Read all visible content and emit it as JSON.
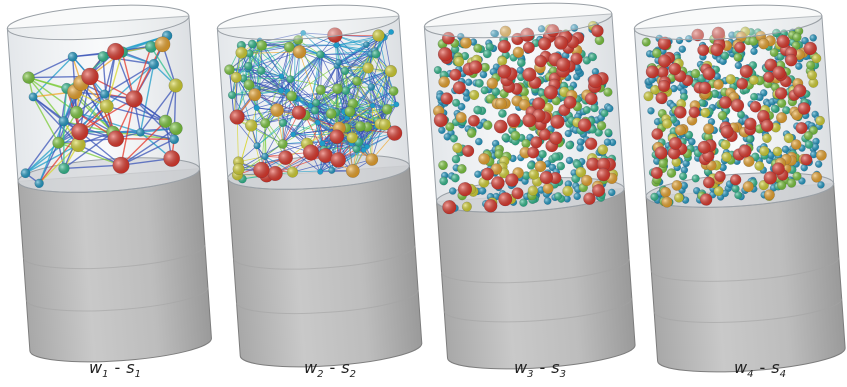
{
  "panels": [
    {
      "id": "p1",
      "var_a": "w",
      "sub_a": "1",
      "sep": "-",
      "var_b": "s",
      "sub_b": "1"
    },
    {
      "id": "p2",
      "var_a": "w",
      "sub_a": "2",
      "sep": "-",
      "var_b": "s",
      "sub_b": "2"
    },
    {
      "id": "p3",
      "var_a": "w",
      "sub_a": "3",
      "sep": "-",
      "var_b": "s",
      "sub_b": "3"
    },
    {
      "id": "p4",
      "var_a": "w",
      "sub_a": "4",
      "sep": "-",
      "var_b": "s",
      "sub_b": "4"
    }
  ],
  "colors": {
    "cylinder_gray": "#b4b4b4",
    "cylinder_dark": "#8e8e8e",
    "glass": "#e9ecef",
    "node_scale": [
      "#2b4fb3",
      "#1f9dc9",
      "#2fbf8f",
      "#7ccc3a",
      "#d8d62e",
      "#f0a628",
      "#e5372a"
    ]
  }
}
